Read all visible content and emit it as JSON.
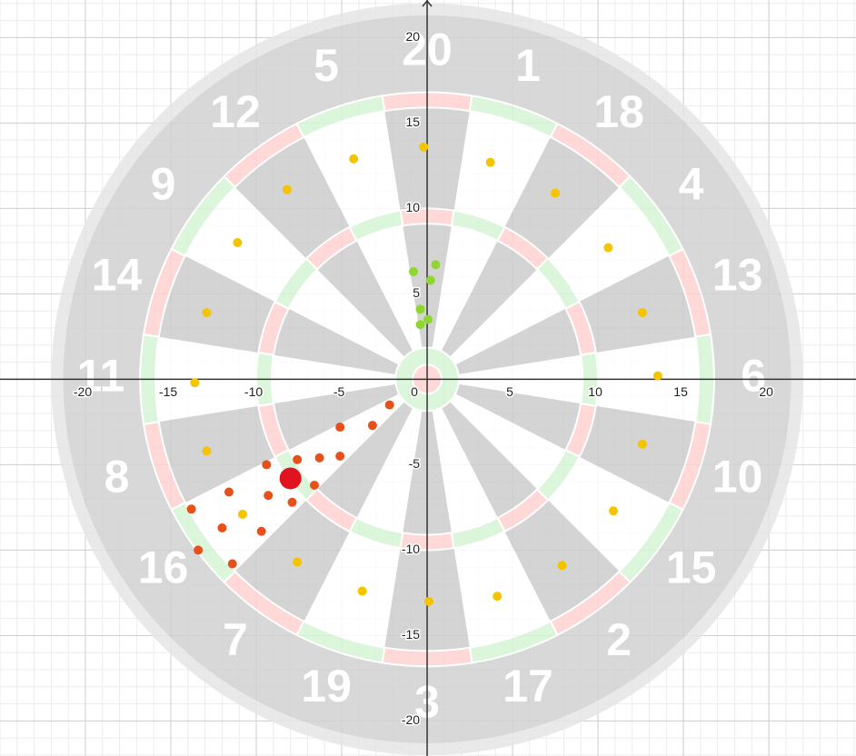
{
  "chart_data": {
    "type": "scatter",
    "xlim": [
      -25,
      25.1
    ],
    "ylim": [
      -22.05,
      22.2
    ],
    "xticks": [
      -20,
      -15,
      -10,
      -5,
      0,
      5,
      10,
      15,
      20
    ],
    "yticks": [
      -20,
      -15,
      -10,
      -5,
      5,
      10,
      15,
      20
    ],
    "grid": true,
    "minor_grid": true,
    "board_numbers": [
      "20",
      "1",
      "18",
      "4",
      "13",
      "6",
      "10",
      "15",
      "2",
      "17",
      "3",
      "19",
      "7",
      "16",
      "8",
      "11",
      "14",
      "9",
      "12",
      "5"
    ],
    "series": [
      {
        "color": "#f5c400",
        "size": "small",
        "x": [
          -0.2,
          3.7,
          7.5,
          10.6,
          12.6,
          13.5,
          12.6,
          10.9,
          7.9,
          4.1,
          0.1,
          -3.8,
          -7.6,
          -10.8,
          -12.9,
          -13.6,
          -12.9,
          -11.1,
          -8.2,
          -4.3
        ],
        "values": [
          13.6,
          12.7,
          10.9,
          7.7,
          3.9,
          0.2,
          -3.8,
          -7.7,
          -10.9,
          -12.7,
          -13.0,
          -12.4,
          -10.7,
          -7.9,
          -4.2,
          -0.2,
          3.9,
          8.0,
          11.1,
          12.9
        ]
      },
      {
        "color": "#8fd62e",
        "size": "small",
        "x": [
          -0.8,
          0.5,
          0.2,
          -0.4,
          0.05,
          -0.4
        ],
        "values": [
          6.3,
          6.7,
          5.8,
          4.1,
          3.5,
          3.2
        ]
      },
      {
        "color": "#e8501a",
        "size": "small",
        "x": [
          -2.2,
          -3.2,
          -5.1,
          -5.1,
          -6.3,
          -7.6,
          -6.6,
          -9.4,
          -9.3,
          -7.9,
          -11.6,
          -13.8,
          -12.0,
          -9.7,
          -13.4,
          -11.4
        ],
        "values": [
          -1.5,
          -2.7,
          -2.8,
          -4.5,
          -4.6,
          -4.7,
          -6.2,
          -5.0,
          -6.8,
          -7.2,
          -6.6,
          -7.6,
          -8.7,
          -8.9,
          -10.0,
          -10.8
        ]
      },
      {
        "color": "#e0141e",
        "size": "large",
        "x": [
          -8.0
        ],
        "values": [
          -5.8
        ]
      }
    ]
  }
}
